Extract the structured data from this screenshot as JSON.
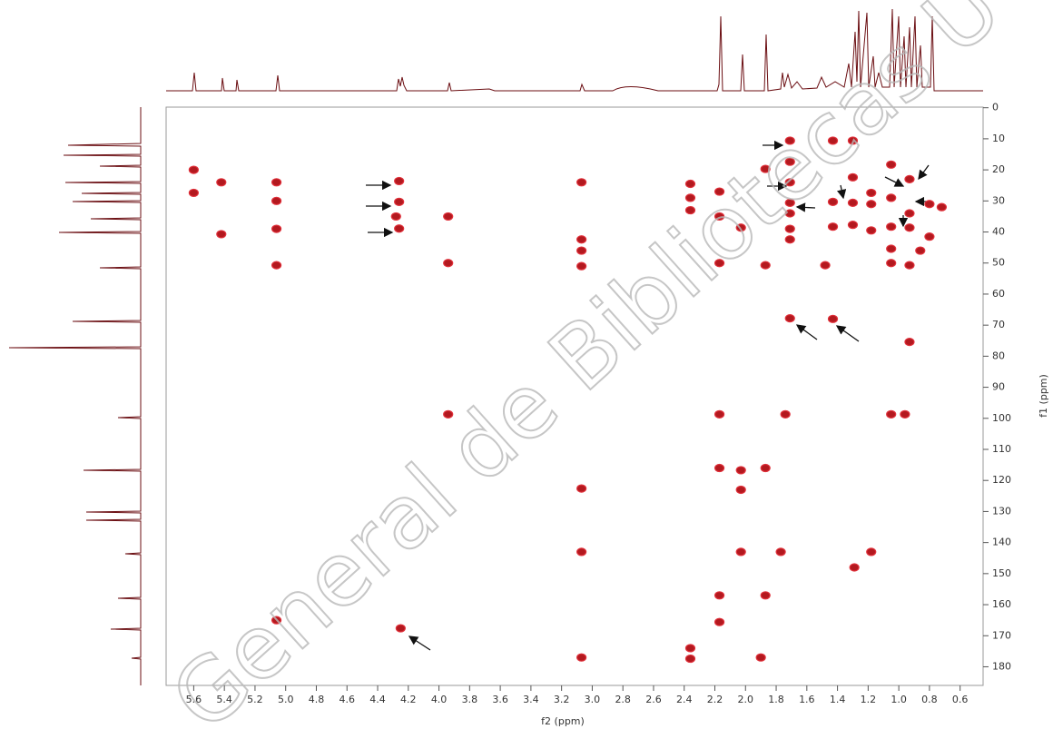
{
  "chart_data": {
    "type": "scatter",
    "xlabel": "f2 (ppm)",
    "ylabel": "f1 (ppm)",
    "watermark": "General de Bibliotecas U",
    "xlim": [
      5.78,
      0.45
    ],
    "ylim": [
      -0.2,
      186
    ],
    "xticks": [
      5.6,
      5.4,
      5.2,
      {
        "value": 5,
        "label": "5.0"
      },
      4.8,
      4.6,
      4.4,
      4.2,
      {
        "value": 4,
        "label": "4.0"
      },
      3.8,
      3.6,
      3.4,
      3.2,
      {
        "value": 3,
        "label": "3.0"
      },
      2.8,
      2.6,
      2.4,
      2.2,
      {
        "value": 2,
        "label": "2.0"
      },
      1.8,
      1.6,
      1.4,
      1.2,
      {
        "value": 1,
        "label": "1.0"
      },
      0.8,
      0.6
    ],
    "yticks": [
      0,
      10,
      20,
      30,
      40,
      50,
      60,
      70,
      80,
      90,
      100,
      110,
      120,
      130,
      140,
      150,
      160,
      170,
      180
    ],
    "color": "#b3191f",
    "edge_color": "#e0303a",
    "x": [
      5.6,
      5.6,
      5.42,
      5.42,
      5.06,
      5.06,
      5.06,
      5.06,
      5.06,
      4.26,
      4.26,
      4.26,
      4.28,
      4.25,
      3.94,
      3.94,
      3.94,
      3.07,
      3.07,
      3.07,
      3.07,
      3.07,
      3.07,
      3.07,
      2.36,
      2.36,
      2.36,
      2.36,
      2.36,
      2.17,
      2.17,
      2.17,
      2.17,
      2.17,
      2.17,
      2.17,
      2.03,
      2.03,
      2.03,
      2.03,
      1.87,
      1.87,
      1.87,
      1.9,
      1.87,
      1.71,
      1.71,
      1.71,
      1.71,
      1.71,
      1.71,
      1.71,
      1.71,
      1.74,
      1.77,
      1.43,
      1.43,
      1.43,
      1.43,
      1.48,
      1.3,
      1.3,
      1.3,
      1.3,
      1.18,
      1.18,
      1.18,
      1.18,
      1.29,
      1.05,
      1.05,
      1.05,
      1.05,
      1.05,
      1.05,
      0.96,
      0.93,
      0.93,
      0.93,
      0.93,
      0.86,
      0.8,
      0.8,
      0.72,
      0.93
    ],
    "values": [
      20,
      27.4,
      40.7,
      24,
      24,
      30,
      39,
      50.7,
      165,
      23.6,
      30.3,
      38.9,
      35,
      167.6,
      35,
      50,
      98.7,
      24,
      42.4,
      46,
      51,
      122.6,
      143,
      177,
      33,
      24.5,
      29,
      174,
      177.4,
      27,
      35,
      50,
      116,
      157,
      165.6,
      98.7,
      38.6,
      116.7,
      143,
      123,
      19.7,
      116,
      157,
      177,
      50.7,
      10.6,
      17.4,
      24,
      30.6,
      34,
      39,
      42.4,
      67.8,
      98.7,
      143,
      10.6,
      30.3,
      38.3,
      68,
      50.7,
      10.6,
      30.6,
      37.7,
      22.4,
      31,
      39.5,
      27.4,
      143,
      148,
      18.3,
      29,
      38.3,
      45.4,
      50,
      98.7,
      98.7,
      23,
      34,
      38.6,
      50.7,
      46,
      41.5,
      31,
      32,
      75.4
    ]
  }
}
